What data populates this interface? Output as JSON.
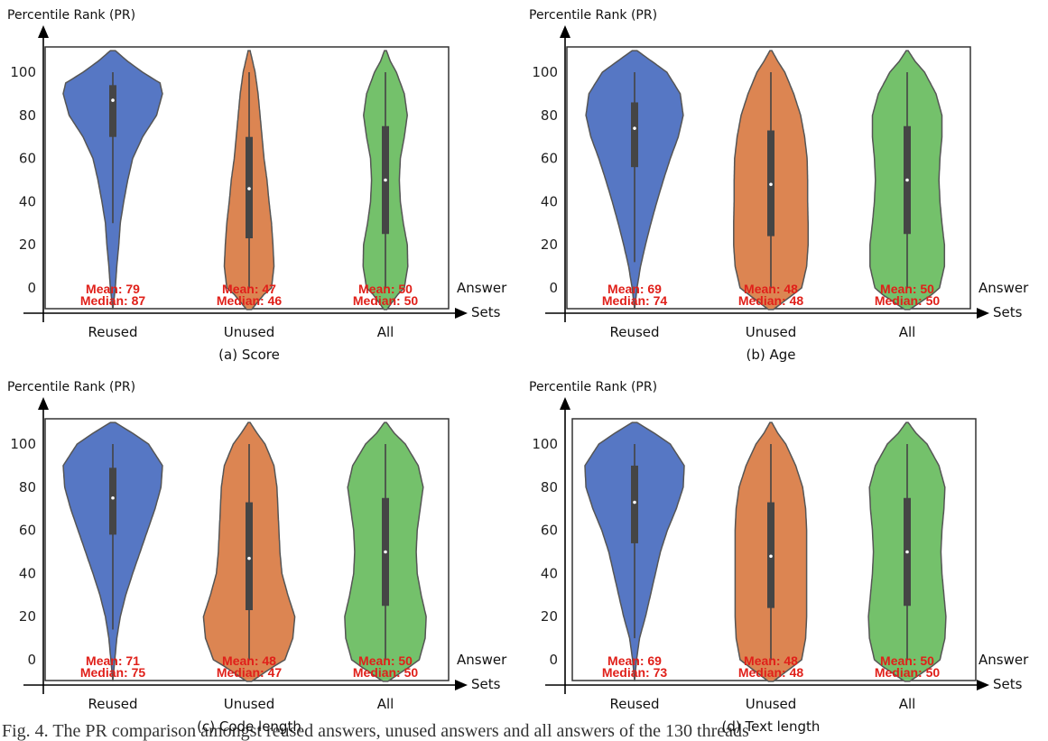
{
  "y_axis_label": "Percentile Rank (PR)",
  "x_axis_label_line1": "Answer",
  "x_axis_label_line2": "Sets",
  "stat_labels": {
    "mean": "Mean:",
    "median": "Median:"
  },
  "caption": "Fig. 4. The PR comparison amongst reused answers, unused answers and all answers of the 130 threads",
  "colors": {
    "Reused": "#5677c4",
    "Unused": "#dc8552",
    "All": "#74c16b",
    "stat_text": "#e0201a"
  },
  "chart_data": [
    {
      "type": "violin",
      "subtitle": "(a) Score",
      "ylabel": "Percentile Rank (PR)",
      "xlabel": "Answer Sets",
      "ylim": [
        -10,
        110
      ],
      "yticks": [
        0,
        20,
        40,
        60,
        80,
        100
      ],
      "categories": [
        "Reused",
        "Unused",
        "All"
      ],
      "mean": [
        79,
        47,
        50
      ],
      "median": [
        87,
        46,
        50
      ],
      "q1": [
        70,
        23,
        25
      ],
      "q3": [
        94,
        70,
        75
      ],
      "whisker": [
        [
          30,
          100
        ],
        [
          0,
          100
        ],
        [
          0,
          100
        ]
      ]
    },
    {
      "type": "violin",
      "subtitle": "(b) Age",
      "ylabel": "Percentile Rank (PR)",
      "xlabel": "Answer Sets",
      "ylim": [
        -10,
        110
      ],
      "yticks": [
        0,
        20,
        40,
        60,
        80,
        100
      ],
      "categories": [
        "Reused",
        "Unused",
        "All"
      ],
      "mean": [
        69,
        48,
        50
      ],
      "median": [
        74,
        48,
        50
      ],
      "q1": [
        56,
        24,
        25
      ],
      "q3": [
        86,
        73,
        75
      ],
      "whisker": [
        [
          12,
          100
        ],
        [
          0,
          100
        ],
        [
          0,
          100
        ]
      ]
    },
    {
      "type": "violin",
      "subtitle": "(c) Code length",
      "ylabel": "Percentile Rank (PR)",
      "xlabel": "Answer Sets",
      "ylim": [
        -10,
        110
      ],
      "yticks": [
        0,
        20,
        40,
        60,
        80,
        100
      ],
      "categories": [
        "Reused",
        "Unused",
        "All"
      ],
      "mean": [
        71,
        48,
        50
      ],
      "median": [
        75,
        47,
        50
      ],
      "q1": [
        58,
        23,
        25
      ],
      "q3": [
        89,
        73,
        75
      ],
      "whisker": [
        [
          14,
          100
        ],
        [
          0,
          100
        ],
        [
          0,
          100
        ]
      ]
    },
    {
      "type": "violin",
      "subtitle": "(d) Text length",
      "ylabel": "Percentile Rank (PR)",
      "xlabel": "Answer Sets",
      "ylim": [
        -10,
        110
      ],
      "yticks": [
        0,
        20,
        40,
        60,
        80,
        100
      ],
      "categories": [
        "Reused",
        "Unused",
        "All"
      ],
      "mean": [
        69,
        48,
        50
      ],
      "median": [
        73,
        48,
        50
      ],
      "q1": [
        54,
        24,
        25
      ],
      "q3": [
        90,
        73,
        75
      ],
      "whisker": [
        [
          10,
          100
        ],
        [
          0,
          100
        ],
        [
          0,
          100
        ]
      ]
    }
  ]
}
